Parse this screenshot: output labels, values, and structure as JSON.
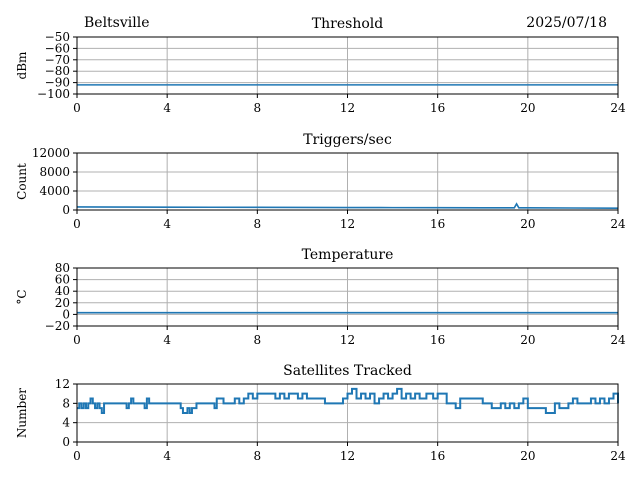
{
  "header": {
    "location": "Beltsville",
    "date": "2025/07/18"
  },
  "colors": {
    "series": "#1f77b4",
    "grid": "#b0b0b0",
    "axis": "#000000"
  },
  "chart_data": [
    {
      "type": "line",
      "title": "Threshold",
      "xlabel": "",
      "ylabel": "dBm",
      "xlim": [
        0,
        24
      ],
      "ylim": [
        -100,
        -50
      ],
      "xticks": [
        0,
        4,
        8,
        12,
        16,
        20,
        24
      ],
      "yticks": [
        -100,
        -90,
        -80,
        -70,
        -60,
        -50
      ],
      "grid": true,
      "series": [
        {
          "x": [
            0,
            24
          ],
          "y": [
            -92,
            -92
          ]
        }
      ]
    },
    {
      "type": "line",
      "title": "Triggers/sec",
      "xlabel": "",
      "ylabel": "Count",
      "xlim": [
        0,
        24
      ],
      "ylim": [
        0,
        12000
      ],
      "xticks": [
        0,
        4,
        8,
        12,
        16,
        20,
        24
      ],
      "yticks": [
        0,
        4000,
        8000,
        12000
      ],
      "grid": true,
      "series": [
        {
          "x": [
            0,
            2,
            4,
            6,
            8,
            10,
            12,
            14,
            16,
            18,
            19.4,
            19.5,
            19.6,
            20,
            22,
            24
          ],
          "y": [
            650,
            620,
            600,
            580,
            560,
            540,
            520,
            500,
            480,
            470,
            470,
            1300,
            470,
            460,
            420,
            380
          ]
        }
      ]
    },
    {
      "type": "line",
      "title": "Temperature",
      "xlabel": "",
      "ylabel": "°C",
      "xlim": [
        0,
        24
      ],
      "ylim": [
        -20,
        80
      ],
      "xticks": [
        0,
        4,
        8,
        12,
        16,
        20,
        24
      ],
      "yticks": [
        -20,
        0,
        20,
        40,
        60,
        80
      ],
      "grid": true,
      "series": [
        {
          "x": [
            0,
            24
          ],
          "y": [
            3,
            3
          ]
        }
      ]
    },
    {
      "type": "line",
      "title": "Satellites Tracked",
      "xlabel": "",
      "ylabel": "Number",
      "xlim": [
        0,
        24
      ],
      "ylim": [
        0,
        12
      ],
      "xticks": [
        0,
        4,
        8,
        12,
        16,
        20,
        24
      ],
      "yticks": [
        0,
        4,
        8,
        12
      ],
      "grid": true,
      "step": true,
      "series": [
        {
          "x": [
            0,
            0.1,
            0.2,
            0.3,
            0.4,
            0.5,
            0.6,
            0.7,
            0.8,
            0.9,
            1.0,
            1.1,
            1.2,
            1.4,
            2.0,
            2.2,
            2.3,
            2.4,
            2.5,
            2.6,
            2.8,
            3.0,
            3.1,
            3.2,
            3.5,
            3.6,
            4.5,
            4.6,
            4.7,
            4.9,
            5.0,
            5.1,
            5.3,
            5.4,
            5.6,
            6.0,
            6.1,
            6.2,
            6.5,
            6.6,
            6.8,
            7.0,
            7.2,
            7.4,
            7.6,
            7.8,
            8.0,
            8.4,
            8.8,
            9.0,
            9.2,
            9.4,
            9.8,
            10.0,
            10.2,
            10.6,
            11.0,
            11.3,
            11.5,
            11.8,
            12.0,
            12.2,
            12.4,
            12.6,
            12.8,
            13.0,
            13.2,
            13.4,
            13.6,
            13.8,
            14.0,
            14.2,
            14.4,
            14.6,
            14.8,
            15.0,
            15.2,
            15.5,
            15.8,
            16.0,
            16.4,
            16.8,
            17.0,
            17.4,
            17.8,
            18.0,
            18.4,
            18.8,
            19.0,
            19.2,
            19.4,
            19.6,
            19.8,
            20.0,
            20.4,
            20.8,
            21.0,
            21.2,
            21.4,
            21.8,
            22.0,
            22.2,
            22.4,
            22.8,
            23.0,
            23.2,
            23.4,
            23.6,
            23.8,
            24.0
          ],
          "y": [
            7,
            8,
            7,
            8,
            7,
            8,
            9,
            8,
            7,
            8,
            7,
            6,
            8,
            8,
            8,
            7,
            8,
            9,
            8,
            8,
            8,
            7,
            9,
            8,
            8,
            8,
            8,
            7,
            6,
            7,
            6,
            7,
            8,
            8,
            8,
            8,
            7,
            9,
            8,
            8,
            8,
            9,
            8,
            9,
            10,
            9,
            10,
            10,
            9,
            10,
            9,
            10,
            9,
            10,
            9,
            9,
            8,
            8,
            8,
            9,
            10,
            11,
            9,
            10,
            9,
            10,
            8,
            9,
            10,
            9,
            10,
            11,
            9,
            10,
            9,
            10,
            9,
            10,
            9,
            10,
            8,
            7,
            9,
            9,
            9,
            8,
            7,
            8,
            7,
            8,
            7,
            8,
            9,
            7,
            7,
            6,
            6,
            8,
            7,
            8,
            9,
            8,
            8,
            9,
            8,
            9,
            8,
            9,
            10,
            8
          ]
        }
      ]
    }
  ]
}
